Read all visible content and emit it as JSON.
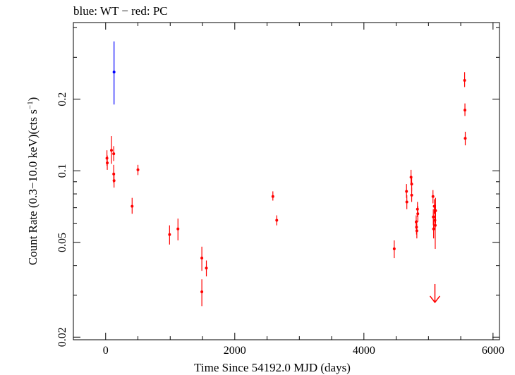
{
  "chart_data": {
    "type": "scatter",
    "title": "blue: WT − red: PC",
    "xlabel": "Time Since 54192.0 MJD (days)",
    "ylabel_main": "Count Rate (0.3−10.0 keV)(cts s",
    "ylabel_sup": "−1",
    "ylabel_end": ")",
    "xlim": [
      -500,
      6100
    ],
    "ylim": [
      0.0195,
      0.42
    ],
    "yscale": "log",
    "x_ticks": [
      0,
      2000,
      4000,
      6000
    ],
    "x_tick_labels": [
      "0",
      "2000",
      "4000",
      "6000"
    ],
    "y_ticks": [
      0.02,
      0.05,
      0.1,
      0.2
    ],
    "y_tick_labels": [
      "0.02",
      "0.05",
      "0.1",
      "0.2"
    ],
    "series": [
      {
        "name": "WT",
        "color": "#0000ff",
        "points": [
          {
            "x": 130,
            "y": 0.26,
            "ylo": 0.19,
            "yhi": 0.35
          }
        ]
      },
      {
        "name": "PC",
        "color": "#ff0000",
        "points": [
          {
            "x": 20,
            "y": 0.113,
            "ylo": 0.105,
            "yhi": 0.122
          },
          {
            "x": 25,
            "y": 0.108,
            "ylo": 0.101,
            "yhi": 0.116
          },
          {
            "x": 90,
            "y": 0.122,
            "ylo": 0.107,
            "yhi": 0.14
          },
          {
            "x": 125,
            "y": 0.118,
            "ylo": 0.11,
            "yhi": 0.127
          },
          {
            "x": 125,
            "y": 0.097,
            "ylo": 0.089,
            "yhi": 0.106
          },
          {
            "x": 130,
            "y": 0.091,
            "ylo": 0.085,
            "yhi": 0.098
          },
          {
            "x": 500,
            "y": 0.101,
            "ylo": 0.096,
            "yhi": 0.106
          },
          {
            "x": 410,
            "y": 0.071,
            "ylo": 0.066,
            "yhi": 0.077
          },
          {
            "x": 990,
            "y": 0.054,
            "ylo": 0.049,
            "yhi": 0.059
          },
          {
            "x": 1120,
            "y": 0.057,
            "ylo": 0.051,
            "yhi": 0.063
          },
          {
            "x": 1490,
            "y": 0.043,
            "ylo": 0.038,
            "yhi": 0.048
          },
          {
            "x": 1490,
            "y": 0.031,
            "ylo": 0.027,
            "yhi": 0.035
          },
          {
            "x": 1560,
            "y": 0.039,
            "ylo": 0.036,
            "yhi": 0.042
          },
          {
            "x": 2590,
            "y": 0.078,
            "ylo": 0.075,
            "yhi": 0.082
          },
          {
            "x": 2650,
            "y": 0.062,
            "ylo": 0.059,
            "yhi": 0.065
          },
          {
            "x": 4470,
            "y": 0.047,
            "ylo": 0.043,
            "yhi": 0.051
          },
          {
            "x": 4660,
            "y": 0.082,
            "ylo": 0.077,
            "yhi": 0.088
          },
          {
            "x": 4665,
            "y": 0.074,
            "ylo": 0.069,
            "yhi": 0.079
          },
          {
            "x": 4730,
            "y": 0.094,
            "ylo": 0.087,
            "yhi": 0.101
          },
          {
            "x": 4740,
            "y": 0.088,
            "ylo": 0.082,
            "yhi": 0.094
          },
          {
            "x": 4740,
            "y": 0.079,
            "ylo": 0.074,
            "yhi": 0.085
          },
          {
            "x": 4810,
            "y": 0.061,
            "ylo": 0.057,
            "yhi": 0.065
          },
          {
            "x": 4815,
            "y": 0.058,
            "ylo": 0.054,
            "yhi": 0.062
          },
          {
            "x": 4820,
            "y": 0.056,
            "ylo": 0.052,
            "yhi": 0.06
          },
          {
            "x": 4830,
            "y": 0.069,
            "ylo": 0.064,
            "yhi": 0.074
          },
          {
            "x": 4835,
            "y": 0.066,
            "ylo": 0.061,
            "yhi": 0.071
          },
          {
            "x": 5070,
            "y": 0.078,
            "ylo": 0.073,
            "yhi": 0.083
          },
          {
            "x": 5075,
            "y": 0.064,
            "ylo": 0.059,
            "yhi": 0.069
          },
          {
            "x": 5080,
            "y": 0.057,
            "ylo": 0.052,
            "yhi": 0.062
          },
          {
            "x": 5090,
            "y": 0.071,
            "ylo": 0.066,
            "yhi": 0.076
          },
          {
            "x": 5100,
            "y": 0.062,
            "ylo": 0.057,
            "yhi": 0.068
          },
          {
            "x": 5105,
            "y": 0.059,
            "ylo": 0.047,
            "yhi": 0.072
          },
          {
            "x": 5110,
            "y": 0.068,
            "ylo": 0.06,
            "yhi": 0.077
          },
          {
            "x": 5560,
            "y": 0.24,
            "ylo": 0.225,
            "yhi": 0.26
          },
          {
            "x": 5565,
            "y": 0.18,
            "ylo": 0.17,
            "yhi": 0.192
          },
          {
            "x": 5570,
            "y": 0.137,
            "ylo": 0.128,
            "yhi": 0.146
          }
        ]
      }
    ],
    "upper_limits": [
      {
        "x": 5100,
        "y": 0.028,
        "color": "#ff0000"
      }
    ]
  }
}
